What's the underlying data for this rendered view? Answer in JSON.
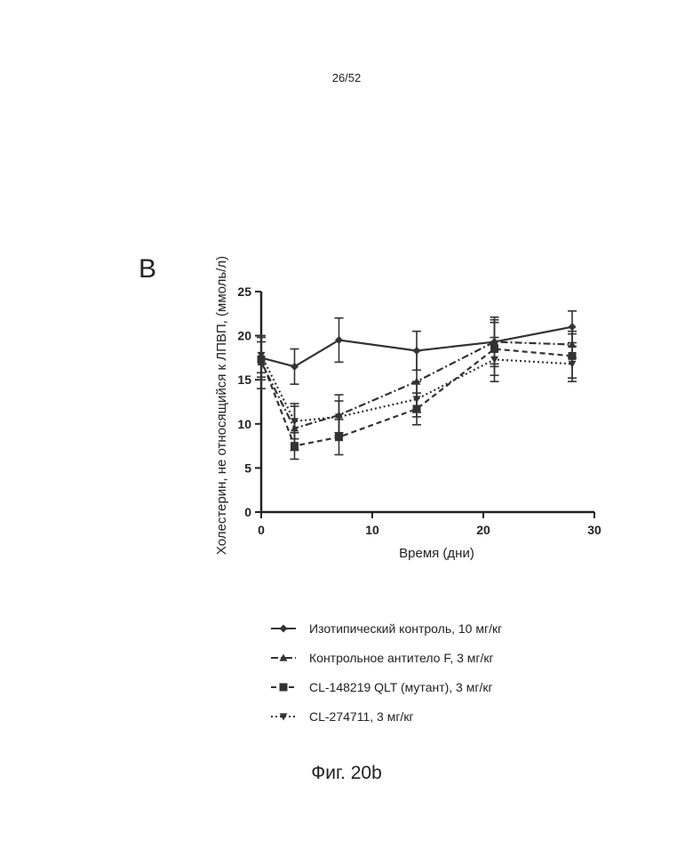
{
  "page": {
    "number": "26/52",
    "panel": "B",
    "caption": "Фиг. 20b"
  },
  "chart_data": {
    "type": "line",
    "title": "",
    "xlabel": "Время (дни)",
    "ylabel": "Холестерин, не относящийся к ЛПВП, (ммоль/л)",
    "xlim": [
      0,
      30
    ],
    "ylim": [
      0,
      25
    ],
    "xticks": [
      0,
      10,
      20,
      30
    ],
    "yticks": [
      0,
      5,
      10,
      15,
      20,
      25
    ],
    "grid": false,
    "legend_position": "below",
    "series": [
      {
        "name": "Изотипический контроль, 10 мг/кг",
        "style": "solid",
        "marker": "diamond",
        "x": [
          0,
          3,
          7,
          14,
          21,
          28
        ],
        "y": [
          17.5,
          16.5,
          19.5,
          18.3,
          19.3,
          21.0
        ],
        "err": [
          2.5,
          2.0,
          2.5,
          2.2,
          2.8,
          1.8
        ]
      },
      {
        "name": "Контрольное антитело F, 3 мг/кг",
        "style": "dashdot",
        "marker": "triangle-up",
        "x": [
          0,
          3,
          7,
          14,
          21,
          28
        ],
        "y": [
          17.0,
          9.5,
          11.0,
          14.8,
          19.3,
          19.0
        ],
        "err": [
          3.0,
          2.5,
          2.3,
          3.5,
          2.5,
          1.5
        ]
      },
      {
        "name": "CL-148219 QLT (мутант), 3 мг/кг",
        "style": "dashed",
        "marker": "square",
        "x": [
          0,
          3,
          7,
          14,
          21,
          28
        ],
        "y": [
          17.3,
          7.5,
          8.5,
          11.7,
          18.5,
          17.7
        ],
        "err": [
          2.0,
          1.5,
          2.0,
          1.8,
          3.0,
          2.5
        ]
      },
      {
        "name": "CL-274711, 3 мг/кг",
        "style": "dotted",
        "marker": "triangle-down",
        "x": [
          0,
          3,
          7,
          14,
          21,
          28
        ],
        "y": [
          17.8,
          10.3,
          10.8,
          12.8,
          17.3,
          16.8
        ],
        "err": [
          2.0,
          2.0,
          1.8,
          2.0,
          2.5,
          2.0
        ]
      }
    ]
  }
}
